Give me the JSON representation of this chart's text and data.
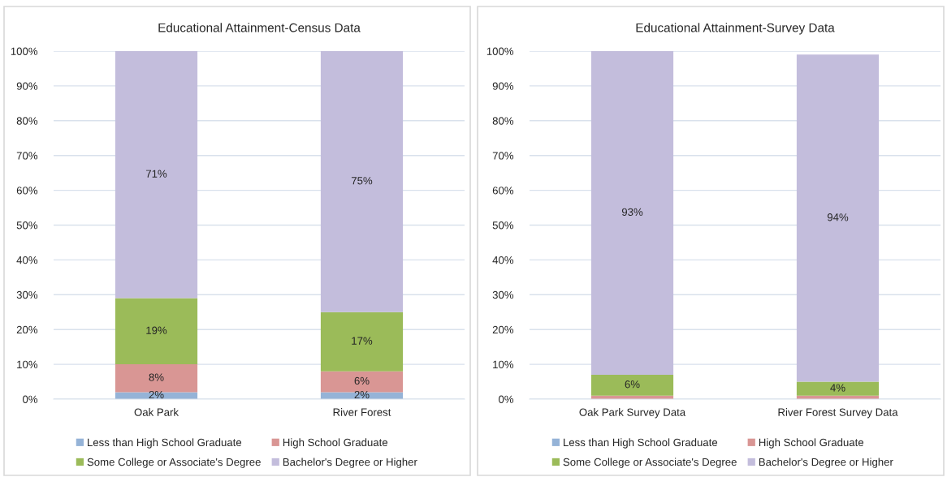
{
  "chart_data": [
    {
      "type": "bar",
      "stacked": true,
      "title": "Educational Attainment-Census Data",
      "categories": [
        "Oak Park",
        "River Forest"
      ],
      "series": [
        {
          "name": "Less than High School Graduate",
          "color": "#95b3d7",
          "values": [
            2,
            2
          ],
          "value_labels": [
            "2%",
            "2%"
          ]
        },
        {
          "name": "High School Graduate",
          "color": "#d99694",
          "values": [
            8,
            6
          ],
          "value_labels": [
            "8%",
            "6%"
          ]
        },
        {
          "name": "Some College or Associate's Degree",
          "color": "#9bbb59",
          "values": [
            19,
            17
          ],
          "value_labels": [
            "19%",
            "17%"
          ]
        },
        {
          "name": "Bachelor's Degree or Higher",
          "color": "#c3bddc",
          "values": [
            71,
            75
          ],
          "value_labels": [
            "71%",
            "75%"
          ]
        }
      ],
      "ylim": [
        0,
        100
      ],
      "yticks": [
        {
          "value": 0,
          "label": "0%"
        },
        {
          "value": 10,
          "label": "10%"
        },
        {
          "value": 20,
          "label": "20%"
        },
        {
          "value": 30,
          "label": "30%"
        },
        {
          "value": 40,
          "label": "40%"
        },
        {
          "value": 50,
          "label": "50%"
        },
        {
          "value": 60,
          "label": "60%"
        },
        {
          "value": 70,
          "label": "70%"
        },
        {
          "value": 80,
          "label": "80%"
        },
        {
          "value": 90,
          "label": "90%"
        },
        {
          "value": 100,
          "label": "100%"
        }
      ],
      "grid": "y",
      "legend": "bottom"
    },
    {
      "type": "bar",
      "stacked": true,
      "title": "Educational Attainment-Survey Data",
      "categories": [
        "Oak Park Survey Data",
        "River Forest Survey Data"
      ],
      "series": [
        {
          "name": "Less than High School Graduate",
          "color": "#95b3d7",
          "values": [
            0,
            0
          ],
          "value_labels": [
            null,
            null
          ]
        },
        {
          "name": "High School Graduate",
          "color": "#d99694",
          "values": [
            1,
            1
          ],
          "value_labels": [
            null,
            null
          ]
        },
        {
          "name": "Some College or Associate's Degree",
          "color": "#9bbb59",
          "values": [
            6,
            4
          ],
          "value_labels": [
            "6%",
            "4%"
          ]
        },
        {
          "name": "Bachelor's Degree or Higher",
          "color": "#c3bddc",
          "values": [
            93,
            94
          ],
          "value_labels": [
            "93%",
            "94%"
          ]
        }
      ],
      "ylim": [
        0,
        100
      ],
      "yticks": [
        {
          "value": 0,
          "label": "0%"
        },
        {
          "value": 10,
          "label": "10%"
        },
        {
          "value": 20,
          "label": "20%"
        },
        {
          "value": 30,
          "label": "30%"
        },
        {
          "value": 40,
          "label": "40%"
        },
        {
          "value": 50,
          "label": "50%"
        },
        {
          "value": 60,
          "label": "60%"
        },
        {
          "value": 70,
          "label": "70%"
        },
        {
          "value": 80,
          "label": "80%"
        },
        {
          "value": 90,
          "label": "90%"
        },
        {
          "value": 100,
          "label": "100%"
        }
      ],
      "grid": "y",
      "legend": "bottom"
    }
  ]
}
